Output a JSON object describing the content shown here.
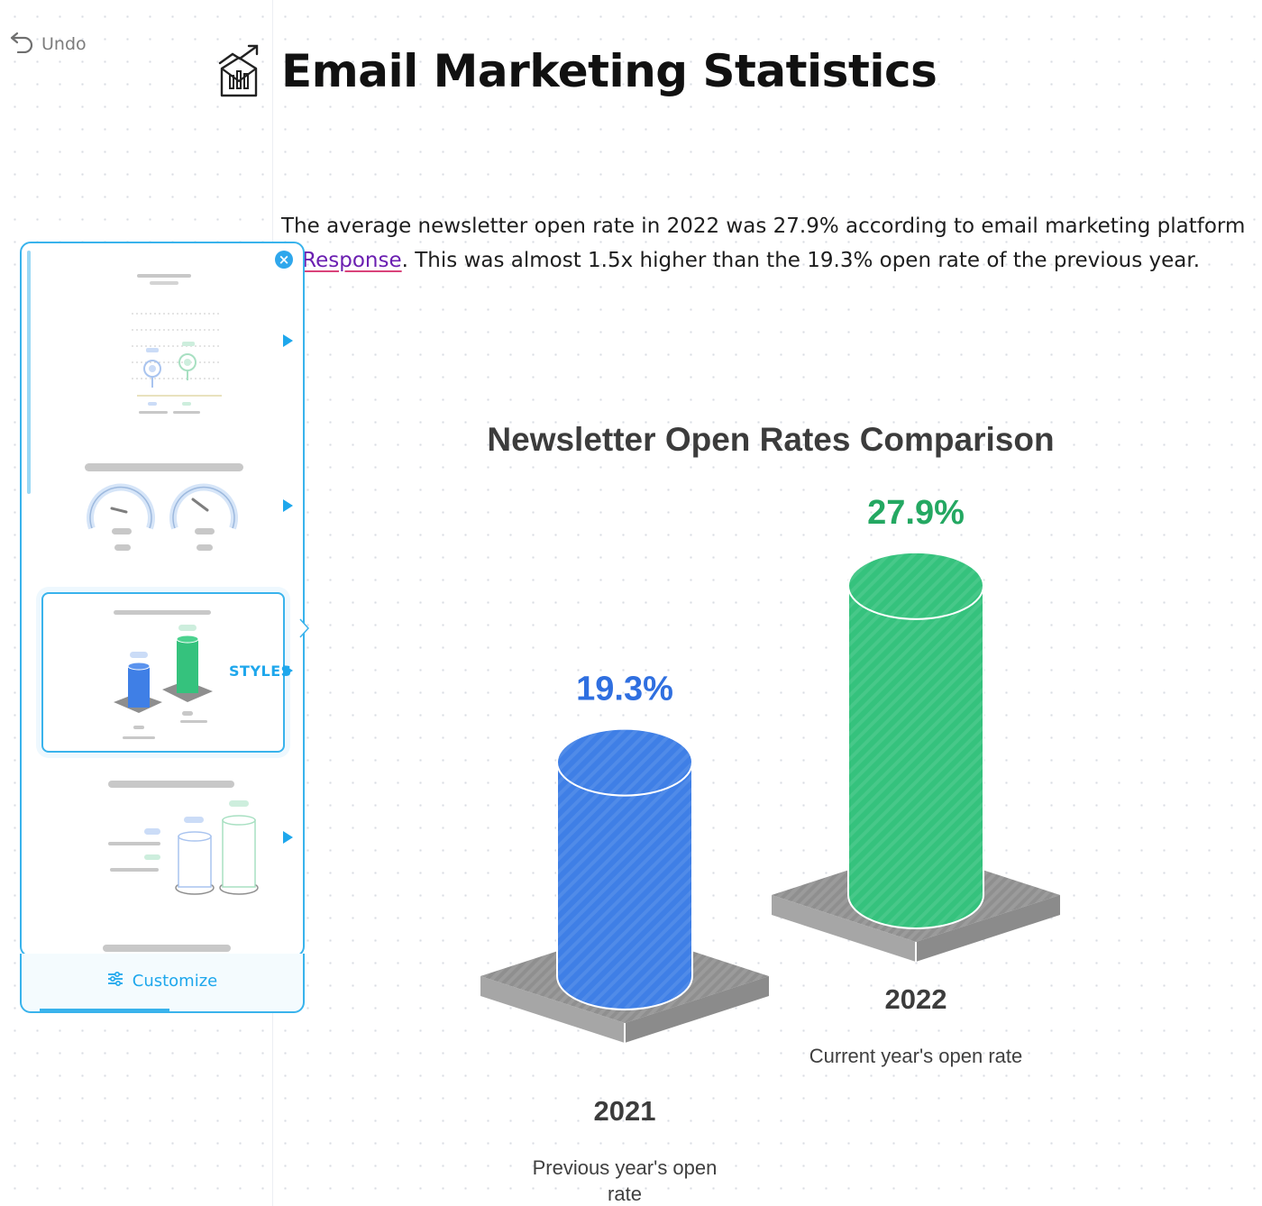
{
  "undo": {
    "label": "Undo"
  },
  "header": {
    "title": "Email Marketing Statistics",
    "icon": "chart-growth-icon"
  },
  "paragraph": {
    "text_before": "The average newsletter open rate in 2022 was 27.9% according to email marketing platform ",
    "link_text": "etResponse",
    "text_after": ". This was almost 1.5x higher than the 19.3% open rate of the previous year."
  },
  "panel": {
    "styles_label": "STYLES",
    "customize_label": "Customize"
  },
  "colors": {
    "accent": "#1ea7ec",
    "blue": "#3f7fe6",
    "green": "#35c27d"
  },
  "chart_data": {
    "type": "bar",
    "style": "3d-cylinder",
    "title": "Newsletter Open Rates Comparison",
    "categories": [
      "2021",
      "2022"
    ],
    "descriptions": [
      "Previous year's open rate",
      "Current year's open rate"
    ],
    "values": [
      19.3,
      27.9
    ],
    "value_labels": [
      "19.3%",
      "27.9%"
    ],
    "series_colors": [
      "#3f7fe6",
      "#35c27d"
    ],
    "value_label_colors": [
      "#2f6fe0",
      "#24a862"
    ],
    "ylim": [
      0,
      30
    ],
    "grid": false
  }
}
